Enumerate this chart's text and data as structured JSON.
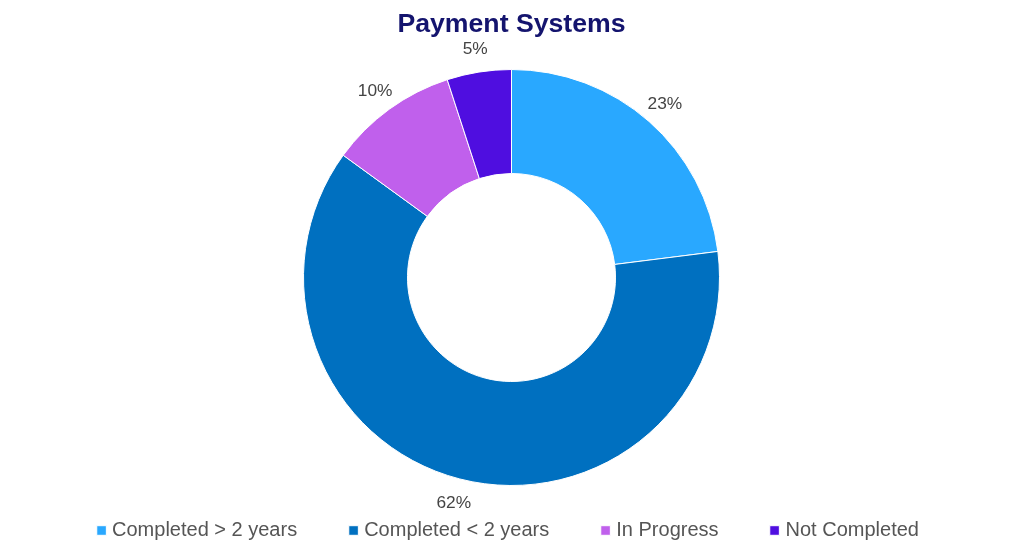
{
  "chart_data": {
    "type": "donut",
    "title": "Payment Systems",
    "categories": [
      "Completed > 2 years",
      "Completed < 2 years",
      "In Progress",
      "Not Completed"
    ],
    "values": [
      23,
      62,
      10,
      5
    ],
    "colors": [
      "#29a8ff",
      "#0070c0",
      "#c060ec",
      "#4f0ee0"
    ],
    "value_labels": [
      "23%",
      "62%",
      "10%",
      "5%"
    ],
    "legend": "bottom"
  }
}
